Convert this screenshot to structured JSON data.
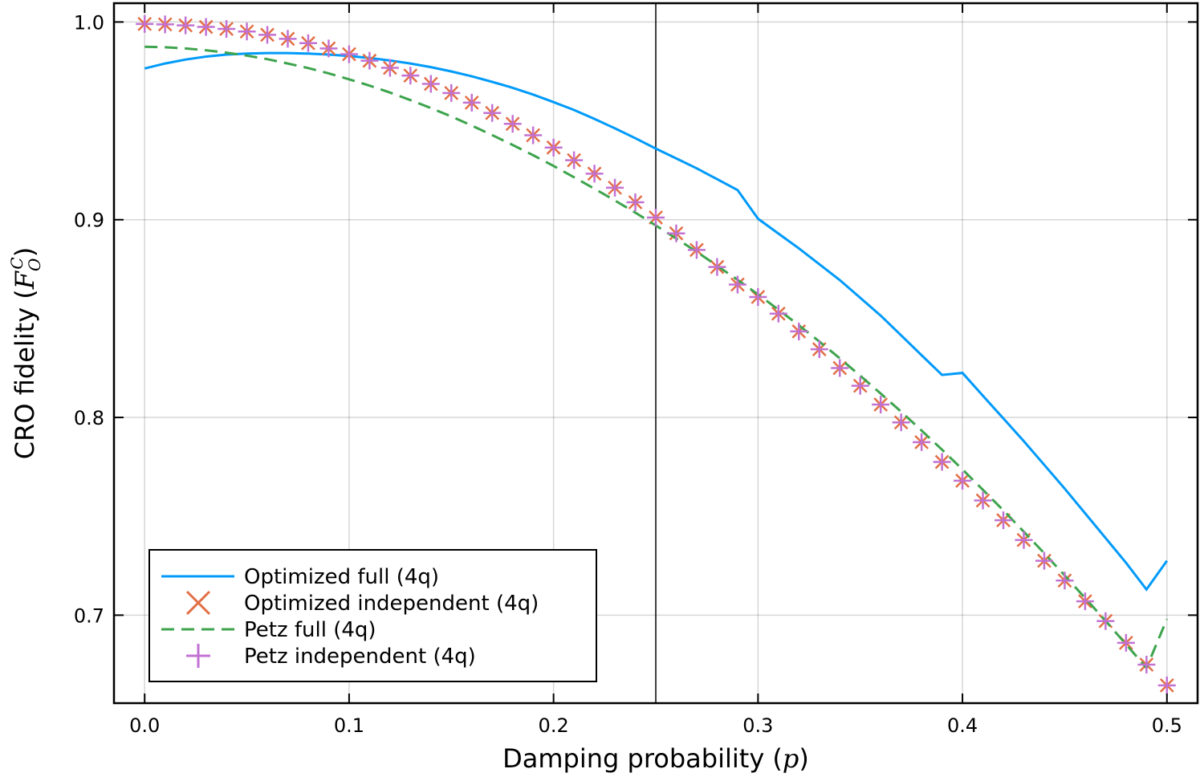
{
  "chart_data": {
    "type": "line",
    "title": "",
    "xlabel": "Damping probability (p)",
    "xlabel_text": "Damping probability",
    "xlabel_symbol": "p",
    "ylabel": "CRO fidelity (F_O^C)",
    "ylabel_text": "CRO fidelity",
    "ylabel_symbol": "F",
    "ylabel_subscript": "O",
    "ylabel_superscript": "C",
    "xlim": [
      -0.015,
      0.515
    ],
    "ylim": [
      0.6555,
      1.0095
    ],
    "xticks": [
      0.0,
      0.1,
      0.2,
      0.3,
      0.4,
      0.5
    ],
    "xtick_labels": [
      "0.0",
      "0.1",
      "0.2",
      "0.3",
      "0.4",
      "0.5"
    ],
    "yticks": [
      0.7,
      0.8,
      0.9,
      1.0
    ],
    "ytick_labels": [
      "0.7",
      "0.8",
      "0.9",
      "1.0"
    ],
    "grid": true,
    "vline": 0.25,
    "legend_position": "bottom-left",
    "x": [
      0.0,
      0.01,
      0.02,
      0.03,
      0.04,
      0.05,
      0.06,
      0.07,
      0.08,
      0.09,
      0.1,
      0.11,
      0.12,
      0.13,
      0.14,
      0.15,
      0.16,
      0.17,
      0.18,
      0.19,
      0.2,
      0.21,
      0.22,
      0.23,
      0.24,
      0.25,
      0.26,
      0.27,
      0.28,
      0.29,
      0.3,
      0.31,
      0.32,
      0.33,
      0.34,
      0.35,
      0.36,
      0.37,
      0.38,
      0.39,
      0.4,
      0.41,
      0.42,
      0.43,
      0.44,
      0.45,
      0.46,
      0.47,
      0.48,
      0.49,
      0.5
    ],
    "series": [
      {
        "name": "Optimized full (4q)",
        "style": "solid-line",
        "color": "#009AFA",
        "values": [
          0.9765,
          0.979,
          0.981,
          0.9825,
          0.9835,
          0.984,
          0.9843,
          0.9843,
          0.984,
          0.9835,
          0.9828,
          0.9818,
          0.9805,
          0.979,
          0.9772,
          0.975,
          0.9725,
          0.9697,
          0.9667,
          0.9633,
          0.9595,
          0.9555,
          0.951,
          0.9462,
          0.9412,
          0.936,
          0.931,
          0.926,
          0.9205,
          0.915,
          0.9005,
          0.893,
          0.8855,
          0.8775,
          0.8695,
          0.8605,
          0.8515,
          0.8415,
          0.8315,
          0.8215,
          0.8225,
          0.811,
          0.7995,
          0.788,
          0.776,
          0.764,
          0.7515,
          0.739,
          0.7265,
          0.713,
          0.7275
        ]
      },
      {
        "name": "Optimized independent (4q)",
        "style": "x-markers",
        "color": "#E26F46",
        "values": [
          0.999,
          0.9988,
          0.9983,
          0.9975,
          0.9965,
          0.9952,
          0.9935,
          0.9915,
          0.9893,
          0.9866,
          0.9837,
          0.9804,
          0.9768,
          0.9729,
          0.9687,
          0.9641,
          0.9592,
          0.954,
          0.9485,
          0.9427,
          0.9365,
          0.9301,
          0.9233,
          0.9162,
          0.9088,
          0.9011,
          0.8931,
          0.8847,
          0.8761,
          0.8672,
          0.8609,
          0.8525,
          0.8435,
          0.8345,
          0.825,
          0.816,
          0.8065,
          0.7975,
          0.7875,
          0.7775,
          0.768,
          0.758,
          0.748,
          0.738,
          0.7275,
          0.7175,
          0.707,
          0.697,
          0.686,
          0.675,
          0.6645
        ]
      },
      {
        "name": "Petz full (4q)",
        "style": "dashed-line",
        "color": "#3DA44D",
        "values": [
          0.9875,
          0.9872,
          0.9866,
          0.9857,
          0.9845,
          0.983,
          0.9812,
          0.979,
          0.9767,
          0.974,
          0.971,
          0.9678,
          0.9643,
          0.9605,
          0.9565,
          0.9522,
          0.9476,
          0.9428,
          0.9378,
          0.9326,
          0.9272,
          0.9215,
          0.9157,
          0.9097,
          0.9036,
          0.8971,
          0.8905,
          0.8838,
          0.8767,
          0.8696,
          0.8622,
          0.8545,
          0.8466,
          0.8384,
          0.8299,
          0.8211,
          0.8121,
          0.8029,
          0.7934,
          0.7837,
          0.7737,
          0.7634,
          0.753,
          0.7422,
          0.7313,
          0.7201,
          0.7087,
          0.6971,
          0.6853,
          0.6733,
          0.698
        ]
      },
      {
        "name": "Petz independent (4q)",
        "style": "plus-markers",
        "color": "#C271D2",
        "values": [
          0.999,
          0.9988,
          0.9983,
          0.9975,
          0.9965,
          0.9952,
          0.9935,
          0.9915,
          0.9893,
          0.9866,
          0.9837,
          0.9804,
          0.9768,
          0.9729,
          0.9687,
          0.9641,
          0.9592,
          0.954,
          0.9485,
          0.9427,
          0.9365,
          0.9301,
          0.9233,
          0.9162,
          0.9088,
          0.9011,
          0.8931,
          0.8847,
          0.8761,
          0.8672,
          0.8609,
          0.8525,
          0.8435,
          0.8345,
          0.825,
          0.816,
          0.8065,
          0.7975,
          0.7875,
          0.7775,
          0.768,
          0.758,
          0.748,
          0.738,
          0.7275,
          0.7175,
          0.707,
          0.697,
          0.686,
          0.675,
          0.6645
        ]
      }
    ]
  }
}
